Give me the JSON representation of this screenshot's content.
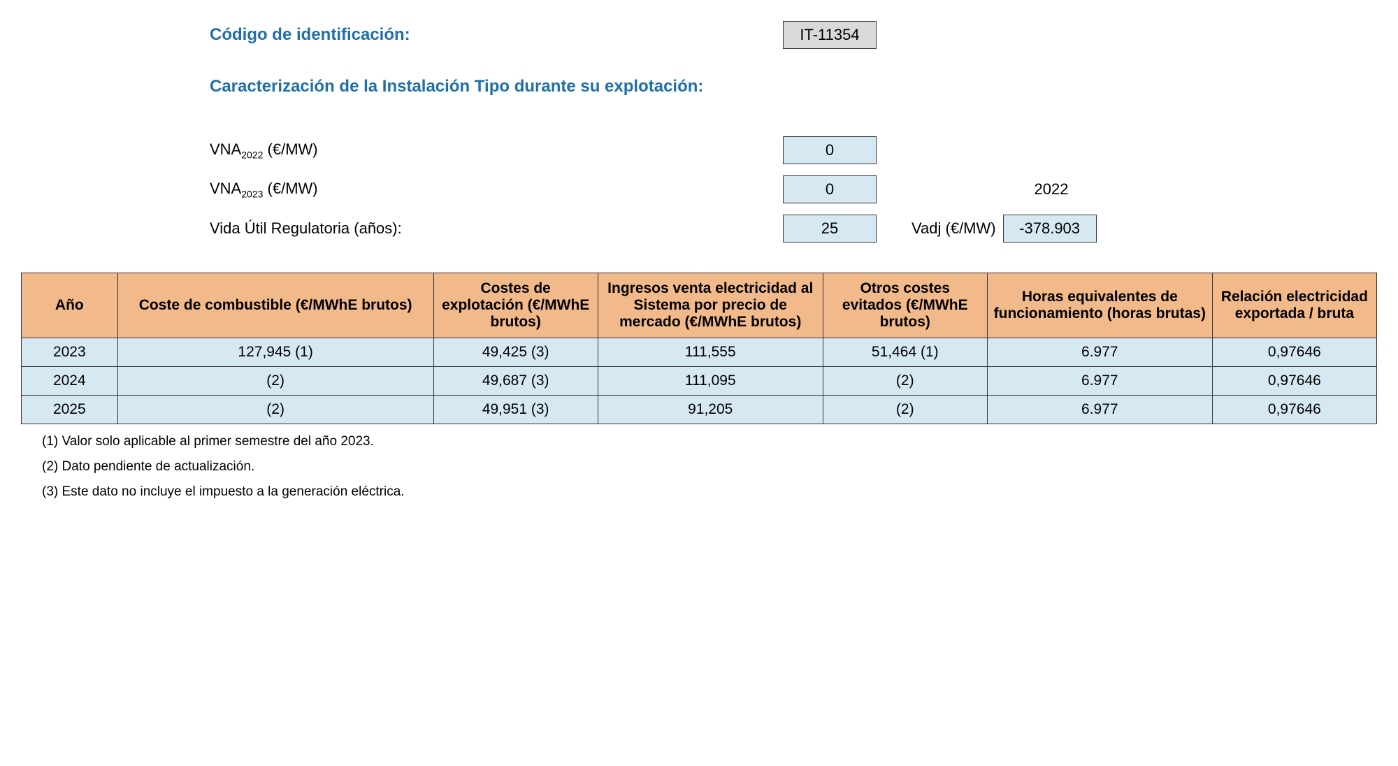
{
  "header": {
    "id_label": "Código de identificación:",
    "id_value": "IT-11354",
    "section_title": "Caracterización de la Instalación Tipo durante su explotación:"
  },
  "params": {
    "vna2022_label_prefix": "VNA",
    "vna2022_sub": "2022",
    "vna2022_unit": " (€/MW)",
    "vna2022_value": "0",
    "vna2023_label_prefix": "VNA",
    "vna2023_sub": "2023",
    "vna2023_unit": " (€/MW)",
    "vna2023_value": "0",
    "vida_label": "Vida Útil Regulatoria (años):",
    "vida_value": "25",
    "vadj_year": "2022",
    "vadj_label": "Vadj (€/MW)",
    "vadj_value": "-378.903"
  },
  "table": {
    "columns": [
      "Año",
      "Coste de combustible (€/MWhE brutos)",
      "Costes de explotación (€/MWhE brutos)",
      "Ingresos venta electricidad al Sistema por precio de mercado (€/MWhE brutos)",
      "Otros costes evitados (€/MWhE brutos)",
      "Horas equivalentes de funcionamiento (horas brutas)",
      "Relación electricidad exportada / bruta"
    ],
    "col_widths": [
      "110px",
      "400px",
      "200px",
      "280px",
      "200px",
      "280px",
      "200px"
    ],
    "rows": [
      [
        "2023",
        "127,945 (1)",
        "49,425 (3)",
        "111,555",
        "51,464 (1)",
        "6.977",
        "0,97646"
      ],
      [
        "2024",
        "(2)",
        "49,687 (3)",
        "111,095",
        "(2)",
        "6.977",
        "0,97646"
      ],
      [
        "2025",
        "(2)",
        "49,951 (3)",
        "91,205",
        "(2)",
        "6.977",
        "0,97646"
      ]
    ],
    "header_bg": "#f2b98a",
    "cell_bg": "#d6e9f2",
    "border_color": "#333333"
  },
  "footnotes": [
    "(1) Valor solo aplicable al primer semestre del año 2023.",
    "(2) Dato pendiente de actualización.",
    "(3) Este dato no incluye el impuesto a la generación eléctrica."
  ]
}
